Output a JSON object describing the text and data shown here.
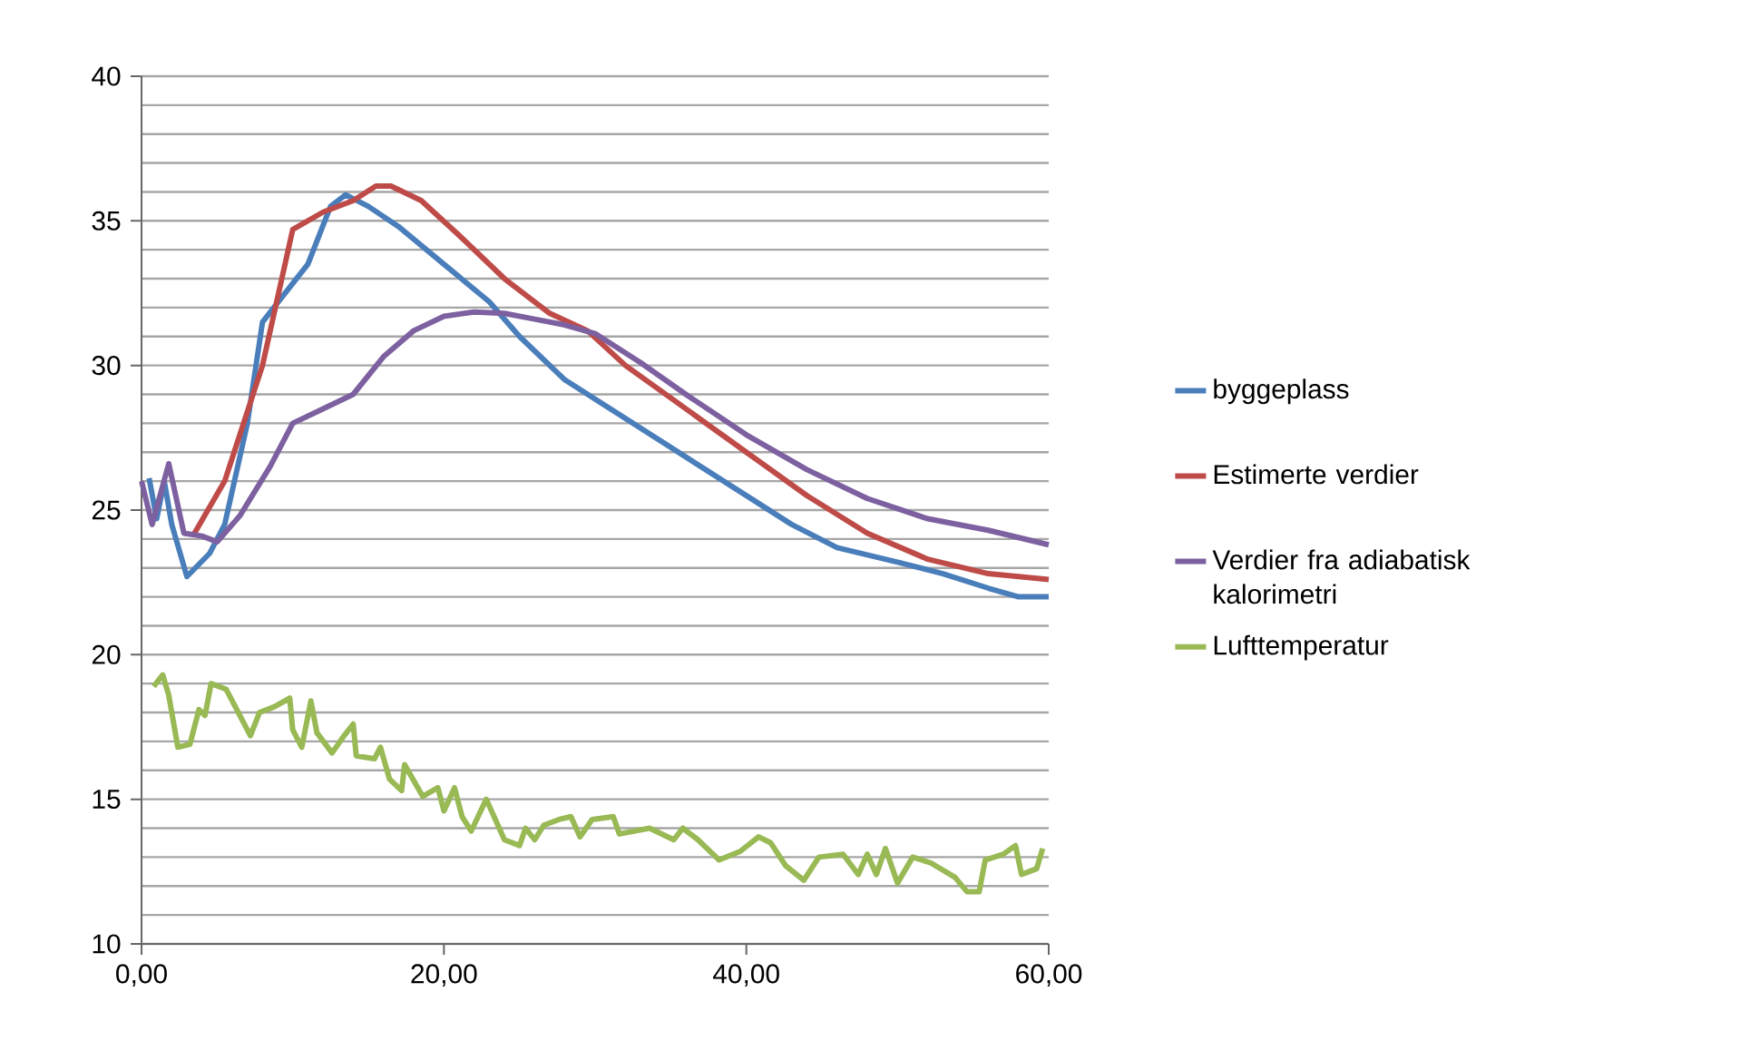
{
  "chart_data": {
    "type": "line",
    "xlim": [
      0,
      60
    ],
    "ylim": [
      10,
      40
    ],
    "xticks": [
      {
        "value": 0,
        "label": "0,00"
      },
      {
        "value": 20,
        "label": "20,00"
      },
      {
        "value": 40,
        "label": "40,00"
      },
      {
        "value": 60,
        "label": "60,00"
      }
    ],
    "yticks": [
      10,
      15,
      20,
      25,
      30,
      35,
      40
    ],
    "grid": "y",
    "legend": "right",
    "marker": "none",
    "line_style": "solid",
    "series": [
      {
        "name": "byggeplass",
        "color": "#4a7ebb",
        "x": [
          0.5,
          1,
          1.5,
          2,
          3,
          4.5,
          5.5,
          7,
          8,
          9.5,
          11,
          12.5,
          13.5,
          15,
          17,
          20,
          23,
          25,
          28,
          31,
          34,
          37,
          40,
          43,
          46,
          50,
          53,
          56,
          58,
          60
        ],
        "values": [
          26.1,
          24.7,
          26,
          24.5,
          22.7,
          23.5,
          24.5,
          28,
          31.5,
          32.5,
          33.5,
          35.5,
          35.9,
          35.5,
          34.8,
          33.5,
          32.2,
          31,
          29.5,
          28.5,
          27.5,
          26.5,
          25.5,
          24.5,
          23.7,
          23.2,
          22.8,
          22.3,
          22.0,
          22.0
        ]
      },
      {
        "name": "Estimerte verdier",
        "color": "#be4b48",
        "x": [
          3.5,
          5.5,
          8,
          10,
          12,
          14,
          15.5,
          16.5,
          18.5,
          21,
          24,
          27,
          29.5,
          32,
          36,
          40,
          44,
          48,
          52,
          56,
          60
        ],
        "values": [
          24.2,
          26,
          30,
          34.7,
          35.3,
          35.7,
          36.2,
          36.2,
          35.7,
          34.5,
          33,
          31.8,
          31.2,
          30,
          28.5,
          27,
          25.5,
          24.2,
          23.3,
          22.8,
          22.6
        ]
      },
      {
        "name": "Verdier fra adiabatisk kalorimetri",
        "color": "#7d60a0",
        "x": [
          0,
          0.7,
          1.8,
          2.8,
          4,
          5,
          6.5,
          8.5,
          10,
          12,
          14,
          16,
          18,
          20,
          22,
          24,
          26,
          28,
          30,
          33,
          36,
          40,
          44,
          48,
          52,
          56,
          60
        ],
        "values": [
          26,
          24.5,
          26.6,
          24.2,
          24.1,
          23.9,
          24.8,
          26.5,
          28,
          28.5,
          29,
          30.3,
          31.2,
          31.7,
          31.85,
          31.8,
          31.6,
          31.4,
          31.1,
          30.1,
          29,
          27.6,
          26.4,
          25.4,
          24.7,
          24.3,
          23.8
        ]
      },
      {
        "name": "Lufttemperatur",
        "color": "#98b954",
        "x": [
          0.8,
          1.4,
          1.8,
          2.4,
          3.2,
          3.8,
          4.2,
          4.6,
          5.6,
          6.2,
          7.2,
          7.8,
          8.8,
          9.8,
          10,
          10.6,
          11.2,
          11.6,
          12.6,
          13.4,
          14,
          14.2,
          15.4,
          15.8,
          16.4,
          17.2,
          17.4,
          18.6,
          19.6,
          20,
          20.7,
          21.2,
          21.8,
          22.8,
          24,
          25,
          25.4,
          26,
          26.6,
          27.6,
          28.4,
          29,
          29.8,
          31.2,
          31.6,
          33.6,
          35.2,
          35.8,
          36.8,
          38.2,
          39.6,
          40.8,
          41.6,
          42.6,
          43.8,
          44.8,
          46.4,
          47.4,
          48,
          48.6,
          49.2,
          50,
          51,
          52.2,
          53.8,
          54.6,
          55.4,
          55.8,
          57,
          57.8,
          58.2,
          59.2,
          59.6
        ],
        "values": [
          18.9,
          19.3,
          18.6,
          16.8,
          16.9,
          18.1,
          17.9,
          19.0,
          18.8,
          18.2,
          17.2,
          18.0,
          18.2,
          18.5,
          17.4,
          16.8,
          18.4,
          17.3,
          16.6,
          17.2,
          17.6,
          16.5,
          16.4,
          16.8,
          15.7,
          15.3,
          16.2,
          15.1,
          15.4,
          14.6,
          15.4,
          14.4,
          13.9,
          15.0,
          13.6,
          13.4,
          14.0,
          13.6,
          14.1,
          14.3,
          14.4,
          13.7,
          14.3,
          14.4,
          13.8,
          14.0,
          13.6,
          14.0,
          13.6,
          12.9,
          13.2,
          13.7,
          13.5,
          12.7,
          12.2,
          13.0,
          13.1,
          12.4,
          13.1,
          12.4,
          13.3,
          12.1,
          13.0,
          12.8,
          12.3,
          11.8,
          11.8,
          12.9,
          13.1,
          13.4,
          12.4,
          12.6,
          13.3
        ]
      }
    ]
  }
}
